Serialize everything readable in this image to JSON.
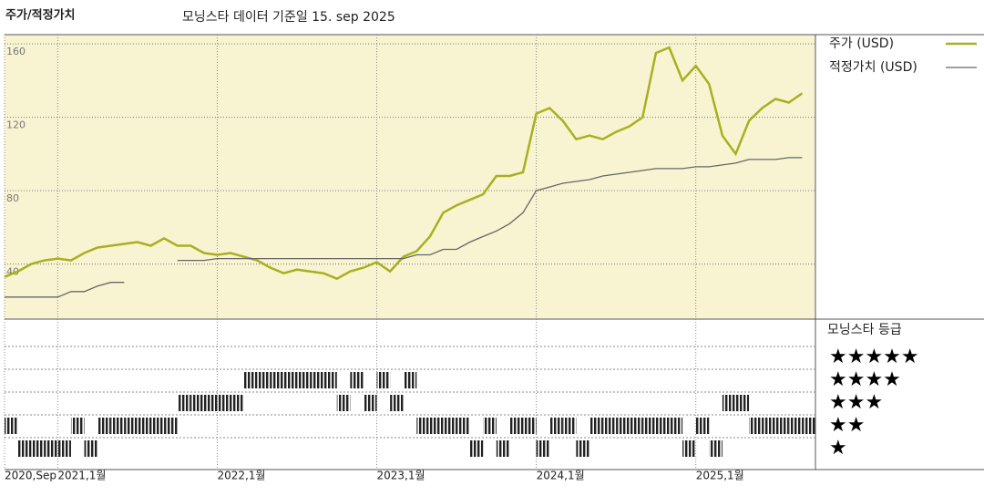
{
  "chart_data": [
    {
      "type": "line",
      "section_title": "주가/적정가치",
      "title": "모닝스타 데이터 기준일 15. sep 2025",
      "x": [
        "2020-09",
        "2020-10",
        "2020-11",
        "2020-12",
        "2021-01",
        "2021-02",
        "2021-03",
        "2021-04",
        "2021-05",
        "2021-06",
        "2021-07",
        "2021-08",
        "2021-09",
        "2021-10",
        "2021-11",
        "2021-12",
        "2022-01",
        "2022-02",
        "2022-03",
        "2022-04",
        "2022-05",
        "2022-06",
        "2022-07",
        "2022-08",
        "2022-09",
        "2022-10",
        "2022-11",
        "2022-12",
        "2023-01",
        "2023-02",
        "2023-03",
        "2023-04",
        "2023-05",
        "2023-06",
        "2023-07",
        "2023-08",
        "2023-09",
        "2023-10",
        "2023-11",
        "2023-12",
        "2024-01",
        "2024-02",
        "2024-03",
        "2024-04",
        "2024-05",
        "2024-06",
        "2024-07",
        "2024-08",
        "2024-09",
        "2024-10",
        "2024-11",
        "2024-12",
        "2025-01",
        "2025-02",
        "2025-03",
        "2025-04",
        "2025-05",
        "2025-06",
        "2025-07",
        "2025-08",
        "2025-09"
      ],
      "xlim": [
        "2020-09",
        "2025-10"
      ],
      "xticks": [
        {
          "value": "2020-09",
          "label": "2020,Sep"
        },
        {
          "value": "2021-01",
          "label": "2021,1월"
        },
        {
          "value": "2022-01",
          "label": "2022,1월"
        },
        {
          "value": "2023-01",
          "label": "2023,1월"
        },
        {
          "value": "2024-01",
          "label": "2024,1월"
        },
        {
          "value": "2025-01",
          "label": "2025,1월"
        }
      ],
      "ylim": [
        10,
        165
      ],
      "yticks": [
        40,
        80,
        120,
        160
      ],
      "grid": true,
      "series": [
        {
          "name": "주가 (USD)",
          "color": "#a8b020",
          "values": [
            33,
            36,
            40,
            42,
            43,
            42,
            46,
            49,
            50,
            51,
            52,
            50,
            54,
            50,
            50,
            46,
            45,
            46,
            44,
            42,
            38,
            35,
            37,
            36,
            35,
            32,
            36,
            38,
            41,
            36,
            44,
            47,
            55,
            68,
            72,
            75,
            78,
            88,
            88,
            90,
            122,
            125,
            118,
            108,
            110,
            108,
            112,
            115,
            120,
            155,
            158,
            140,
            148,
            138,
            110,
            100,
            118,
            125,
            130,
            128,
            133
          ]
        },
        {
          "name": "적정가치 (USD)",
          "color": "#666666",
          "values": [
            22,
            22,
            22,
            22,
            22,
            25,
            25,
            28,
            30,
            30,
            null,
            null,
            null,
            42,
            42,
            42,
            43,
            43,
            43,
            43,
            43,
            43,
            43,
            43,
            43,
            43,
            43,
            43,
            43,
            43,
            43,
            45,
            45,
            48,
            48,
            52,
            55,
            58,
            62,
            68,
            80,
            82,
            84,
            85,
            86,
            88,
            89,
            90,
            91,
            92,
            92,
            92,
            93,
            93,
            94,
            95,
            97,
            97,
            97,
            98,
            98
          ]
        }
      ]
    },
    {
      "type": "strip",
      "title": "모닝스타 등급",
      "x": [
        "2020-09",
        "2020-10",
        "2020-11",
        "2020-12",
        "2021-01",
        "2021-02",
        "2021-03",
        "2021-04",
        "2021-05",
        "2021-06",
        "2021-07",
        "2021-08",
        "2021-09",
        "2021-10",
        "2021-11",
        "2021-12",
        "2022-01",
        "2022-02",
        "2022-03",
        "2022-04",
        "2022-05",
        "2022-06",
        "2022-07",
        "2022-08",
        "2022-09",
        "2022-10",
        "2022-11",
        "2022-12",
        "2023-01",
        "2023-02",
        "2023-03",
        "2023-04",
        "2023-05",
        "2023-06",
        "2023-07",
        "2023-08",
        "2023-09",
        "2023-10",
        "2023-11",
        "2023-12",
        "2024-01",
        "2024-02",
        "2024-03",
        "2024-04",
        "2024-05",
        "2024-06",
        "2024-07",
        "2024-08",
        "2024-09",
        "2024-10",
        "2024-11",
        "2024-12",
        "2025-01",
        "2025-02",
        "2025-03",
        "2025-04",
        "2025-05",
        "2025-06",
        "2025-07",
        "2025-08",
        "2025-09"
      ],
      "xlim": [
        "2020-09",
        "2025-10"
      ],
      "categories": [
        "★",
        "★★",
        "★★★",
        "★★★★",
        "★★★★★"
      ],
      "color": "#333333",
      "values": [
        2,
        1,
        1,
        1,
        1,
        2,
        1,
        2,
        2,
        2,
        2,
        2,
        2,
        3,
        3,
        3,
        3,
        3,
        4,
        4,
        4,
        4,
        4,
        4,
        4,
        3,
        4,
        3,
        4,
        3,
        4,
        2,
        2,
        2,
        2,
        1,
        2,
        1,
        2,
        2,
        1,
        2,
        2,
        1,
        2,
        2,
        2,
        2,
        2,
        2,
        2,
        1,
        2,
        1,
        3,
        3,
        2,
        2,
        2,
        2,
        2
      ]
    }
  ]
}
